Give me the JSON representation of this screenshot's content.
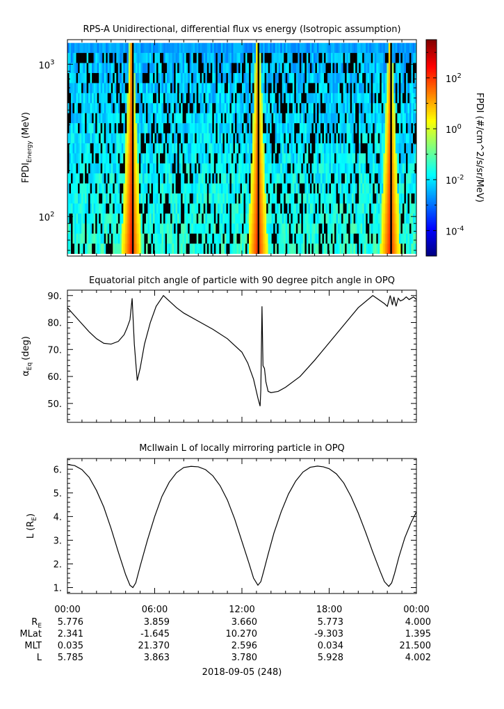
{
  "colors": {
    "line": "#000000",
    "background": "#ffffff",
    "axis": "#000000"
  },
  "chart_data": [
    {
      "type": "heatmap",
      "title": "RPS-A Unidirectional, differential flux vs energy (Isotropic assumption)",
      "ylabel": {
        "main": "FPDI",
        "sub": "Energy",
        "unit": "(MeV)"
      },
      "y_scale": "log",
      "yticks": [
        {
          "base": "10",
          "exp": "2",
          "value": 100
        },
        {
          "base": "10",
          "exp": "3",
          "value": 1000
        }
      ],
      "ylim": [
        55,
        1450
      ],
      "colorbar": {
        "label": "FPDI (#/cm^2/s/sr/MeV)",
        "scale": "log",
        "range_exp": [
          -5,
          3.5
        ],
        "ticks": [
          {
            "base": "10",
            "exp": "-4",
            "value_exp": -4
          },
          {
            "base": "10",
            "exp": "-2",
            "value_exp": -2
          },
          {
            "base": "10",
            "exp": "0",
            "value_exp": 0
          },
          {
            "base": "10",
            "exp": "2",
            "value_exp": 2
          }
        ],
        "colormap": "jet"
      },
      "description_note": "",
      "high_flux_times_hours": [
        4.4,
        13.1,
        22.2
      ]
    },
    {
      "type": "line",
      "title": "Equatorial pitch angle of particle with 90 degree pitch angle in OPQ",
      "ylabel": {
        "main": "α",
        "sub": "Eq",
        "unit": "(deg)"
      },
      "ylim": [
        43,
        92
      ],
      "yticks": [
        "50.",
        "60.",
        "70.",
        "80.",
        "90."
      ],
      "ytick_values": [
        50,
        60,
        70,
        80,
        90
      ],
      "series": [
        {
          "x_hours": [
            0,
            0.5,
            1,
            1.5,
            2,
            2.5,
            3,
            3.5,
            3.9,
            4.1,
            4.3,
            4.45,
            4.6,
            4.8,
            5.0,
            5.3,
            5.7,
            6.1,
            6.6,
            7.0,
            7.5,
            8,
            9,
            10,
            11,
            12,
            12.4,
            12.8,
            13.1,
            13.25,
            13.3,
            13.38,
            13.45,
            13.55,
            13.65,
            13.8,
            14,
            14.5,
            15,
            16,
            17,
            18,
            19,
            20,
            21,
            21.8,
            22.0,
            22.2,
            22.35,
            22.45,
            22.6,
            22.75,
            22.9,
            23.1,
            23.3,
            23.5,
            23.8,
            24
          ],
          "y": [
            85.5,
            82.5,
            79.5,
            76.5,
            74,
            72.3,
            72,
            73,
            75.5,
            78,
            81,
            89,
            72,
            58.5,
            63,
            72,
            80,
            86,
            90,
            88,
            85.5,
            83.5,
            80.5,
            77.5,
            74,
            69,
            65,
            59,
            52,
            49,
            55,
            86,
            64,
            63,
            58,
            54.5,
            54,
            54.5,
            56,
            60,
            66,
            72.5,
            79,
            85.5,
            90,
            87,
            86,
            90,
            86.5,
            89.5,
            86,
            89,
            88,
            88.5,
            89.5,
            88.5,
            89.5,
            88.5
          ]
        }
      ]
    },
    {
      "type": "line",
      "title": "McIlwain L of locally mirroring particle in OPQ",
      "ylabel": {
        "main": "L (R",
        "sub": "E",
        "unit": ")"
      },
      "ylim": [
        0.75,
        6.45
      ],
      "yticks": [
        "1.",
        "2.",
        "3.",
        "4.",
        "5.",
        "6."
      ],
      "ytick_values": [
        1,
        2,
        3,
        4,
        5,
        6
      ],
      "series": [
        {
          "x_hours": [
            0,
            0.5,
            1,
            1.5,
            2,
            2.5,
            3,
            3.5,
            4,
            4.3,
            4.5,
            4.7,
            5,
            5.5,
            6,
            6.5,
            7,
            7.5,
            8,
            8.5,
            9,
            9.5,
            10,
            10.5,
            11,
            11.5,
            12,
            12.5,
            12.8,
            13.1,
            13.3,
            13.5,
            13.8,
            14.2,
            14.7,
            15.2,
            15.7,
            16.2,
            16.7,
            17.2,
            17.6,
            18,
            18.5,
            19,
            19.5,
            20,
            20.5,
            21,
            21.5,
            21.8,
            22.1,
            22.3,
            22.5,
            22.8,
            23.2,
            23.6,
            24
          ],
          "y": [
            6.2,
            6.15,
            5.98,
            5.65,
            5.1,
            4.4,
            3.5,
            2.5,
            1.55,
            1.1,
            1.0,
            1.2,
            1.9,
            3.0,
            4.0,
            4.85,
            5.45,
            5.85,
            6.07,
            6.12,
            6.1,
            5.98,
            5.72,
            5.3,
            4.7,
            3.9,
            2.95,
            2.0,
            1.4,
            1.1,
            1.25,
            1.7,
            2.4,
            3.3,
            4.2,
            4.95,
            5.5,
            5.88,
            6.08,
            6.13,
            6.1,
            6.02,
            5.8,
            5.42,
            4.85,
            4.15,
            3.35,
            2.5,
            1.7,
            1.25,
            1.05,
            1.2,
            1.6,
            2.3,
            3.1,
            3.7,
            4.2
          ]
        }
      ]
    }
  ],
  "time_axis": {
    "x_range_hours": [
      0,
      24
    ],
    "labels": [
      "00:00",
      "06:00",
      "12:00",
      "18:00",
      "00:00"
    ],
    "label_hours": [
      0,
      6,
      12,
      18,
      24
    ]
  },
  "ephemeris": {
    "rows": [
      {
        "label_main": "R",
        "label_sub": "E",
        "values": [
          "5.776",
          "3.859",
          "3.660",
          "5.773",
          "4.000"
        ]
      },
      {
        "label_main": "MLat",
        "label_sub": "",
        "values": [
          "2.341",
          "-1.645",
          "10.270",
          "-9.303",
          "1.395"
        ]
      },
      {
        "label_main": "MLT",
        "label_sub": "",
        "values": [
          "0.035",
          "21.370",
          "2.596",
          "0.034",
          "21.500"
        ]
      },
      {
        "label_main": "L",
        "label_sub": "",
        "values": [
          "5.785",
          "3.863",
          "3.780",
          "5.928",
          "4.002"
        ]
      }
    ],
    "date": "2018-09-05 (248)"
  }
}
